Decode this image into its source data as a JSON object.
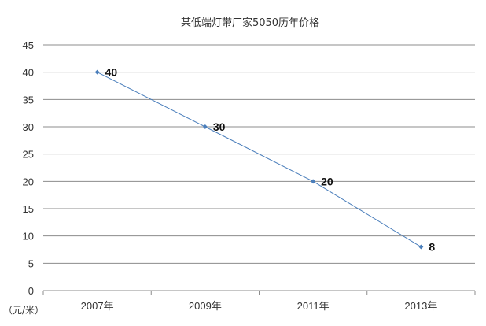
{
  "chart_data": {
    "type": "line",
    "title": "某低端灯带厂家5050历年价格",
    "xlabel": "",
    "ylabel": "",
    "unit_label": "（元/米）",
    "categories": [
      "2007年",
      "2009年",
      "2011年",
      "2013年"
    ],
    "series": [
      {
        "values": [
          40,
          30,
          20,
          8
        ],
        "color": "#4a7ebb"
      }
    ],
    "ylim": [
      0,
      45
    ],
    "yticks": [
      0,
      5,
      10,
      15,
      20,
      25,
      30,
      35,
      40,
      45
    ],
    "ytick_labels": [
      "0",
      "5",
      "10",
      "15",
      "20",
      "25",
      "30",
      "35",
      "40",
      "45"
    ],
    "data_labels": [
      "40",
      "30",
      "20",
      "8"
    ],
    "grid": true,
    "legend": "none"
  }
}
